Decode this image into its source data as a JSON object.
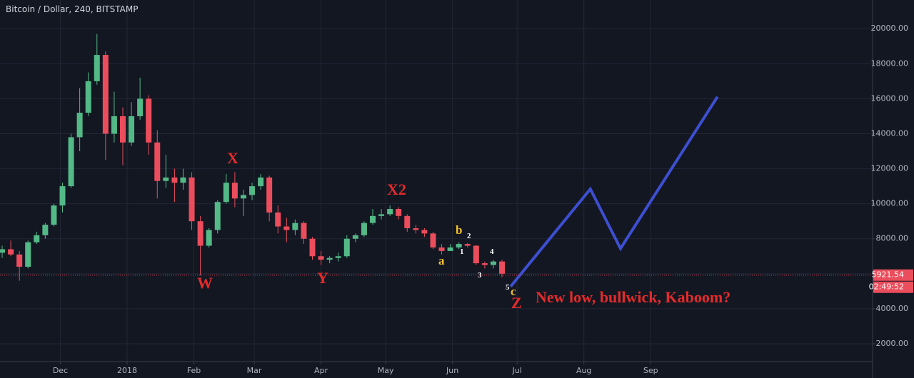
{
  "chart_data": {
    "type": "candlestick",
    "title": "Bitcoin / Dollar, 240, BITSTAMP",
    "up_color": "#53b987",
    "down_color": "#eb4d5c",
    "grid": true,
    "xlim": [
      "2017-11-03",
      "2018-12-13"
    ],
    "xticks": [
      {
        "value": "2017-12-01",
        "label": "Dec"
      },
      {
        "value": "2018-01-01",
        "label": "2018"
      },
      {
        "value": "2018-02-01",
        "label": "Feb"
      },
      {
        "value": "2018-03-01",
        "label": "Mar"
      },
      {
        "value": "2018-04-01",
        "label": "Apr"
      },
      {
        "value": "2018-05-01",
        "label": "May"
      },
      {
        "value": "2018-06-01",
        "label": "Jun"
      },
      {
        "value": "2018-07-01",
        "label": "Jul"
      },
      {
        "value": "2018-08-01",
        "label": "Aug"
      },
      {
        "value": "2018-09-01",
        "label": "Sep"
      }
    ],
    "ylim": [
      980,
      21640
    ],
    "yticks": [
      {
        "value": 2000,
        "label": "2000.00"
      },
      {
        "value": 4000,
        "label": "4000.00"
      },
      {
        "value": 6000,
        "label": "6000.00"
      },
      {
        "value": 8000,
        "label": "8000.00"
      },
      {
        "value": 10000,
        "label": "10000.00"
      },
      {
        "value": 12000,
        "label": "12000.00"
      },
      {
        "value": 14000,
        "label": "14000.00"
      },
      {
        "value": 16000,
        "label": "16000.00"
      },
      {
        "value": 18000,
        "label": "18000.00"
      },
      {
        "value": 20000,
        "label": "20000.00"
      }
    ],
    "x": [
      "2017-11-04",
      "2017-11-08",
      "2017-11-12",
      "2017-11-16",
      "2017-11-20",
      "2017-11-24",
      "2017-11-28",
      "2017-12-02",
      "2017-12-06",
      "2017-12-10",
      "2017-12-14",
      "2017-12-18",
      "2017-12-22",
      "2017-12-26",
      "2017-12-30",
      "2018-01-03",
      "2018-01-07",
      "2018-01-11",
      "2018-01-15",
      "2018-01-19",
      "2018-01-23",
      "2018-01-27",
      "2018-01-31",
      "2018-02-04",
      "2018-02-08",
      "2018-02-12",
      "2018-02-16",
      "2018-02-20",
      "2018-02-24",
      "2018-02-28",
      "2018-03-04",
      "2018-03-08",
      "2018-03-12",
      "2018-03-16",
      "2018-03-20",
      "2018-03-24",
      "2018-03-28",
      "2018-04-01",
      "2018-04-05",
      "2018-04-09",
      "2018-04-13",
      "2018-04-17",
      "2018-04-21",
      "2018-04-25",
      "2018-04-29",
      "2018-05-03",
      "2018-05-07",
      "2018-05-11",
      "2018-05-15",
      "2018-05-19",
      "2018-05-23",
      "2018-05-27",
      "2018-05-31",
      "2018-06-04",
      "2018-06-08",
      "2018-06-12",
      "2018-06-16",
      "2018-06-20",
      "2018-06-24"
    ],
    "open": [
      7200,
      7400,
      7100,
      6400,
      7800,
      8200,
      8800,
      9900,
      11000,
      13800,
      15200,
      17000,
      18500,
      14000,
      15000,
      13500,
      15000,
      16000,
      13500,
      11300,
      11500,
      11200,
      11500,
      9000,
      7600,
      8500,
      10100,
      11200,
      10300,
      10500,
      11000,
      11500,
      9500,
      8700,
      8500,
      8900,
      8000,
      7000,
      6800,
      6900,
      7000,
      8000,
      8200,
      8900,
      9300,
      9400,
      9700,
      9300,
      8600,
      8500,
      8300,
      7500,
      7300,
      7500,
      7700,
      7600,
      6600,
      6500,
      6700
    ],
    "high": [
      7600,
      7900,
      7300,
      7900,
      8400,
      8900,
      10000,
      11200,
      14000,
      16600,
      17500,
      19700,
      18700,
      16400,
      15500,
      15800,
      17200,
      16200,
      14200,
      12800,
      12000,
      12000,
      11800,
      9300,
      8600,
      10200,
      11700,
      11800,
      10800,
      11200,
      11700,
      11600,
      9900,
      9200,
      9100,
      9000,
      8100,
      7300,
      7000,
      7200,
      8200,
      8300,
      9000,
      9700,
      9700,
      9900,
      9800,
      9400,
      8800,
      8600,
      8400,
      7700,
      7700,
      7800,
      7750,
      7650,
      6700,
      6800,
      6800
    ],
    "low": [
      6900,
      7000,
      5600,
      6300,
      7700,
      8000,
      8700,
      9500,
      10900,
      13000,
      15000,
      16800,
      12500,
      13500,
      12200,
      13300,
      14800,
      12800,
      10300,
      10900,
      10100,
      10800,
      8500,
      5900,
      7500,
      8300,
      10000,
      9800,
      9300,
      10200,
      10800,
      9000,
      8300,
      7800,
      8200,
      7700,
      6800,
      6500,
      6600,
      6700,
      6900,
      7800,
      8100,
      8800,
      9100,
      9300,
      9100,
      8400,
      8300,
      8100,
      7400,
      7100,
      7300,
      7400,
      7500,
      6500,
      6300,
      6300,
      5800
    ],
    "close": [
      7400,
      7100,
      6400,
      7800,
      8200,
      8800,
      9900,
      11000,
      13800,
      15200,
      17000,
      18500,
      14000,
      15000,
      13500,
      15000,
      16000,
      13500,
      11300,
      11500,
      11200,
      11500,
      9000,
      7600,
      8500,
      10100,
      11200,
      10300,
      10500,
      11000,
      11500,
      9500,
      8700,
      8500,
      8900,
      8000,
      7000,
      6800,
      6900,
      7000,
      8000,
      8200,
      8900,
      9300,
      9400,
      9700,
      9300,
      8600,
      8500,
      8300,
      7500,
      7300,
      7500,
      7700,
      7600,
      6600,
      6500,
      6700,
      6000
    ],
    "last_price": 5921.54,
    "last_price_color": "#eb4d5c",
    "countdown": "02:49:52",
    "forecast": {
      "color": "#3d4fd1",
      "x": [
        "2018-06-28",
        "2018-08-04",
        "2018-08-18",
        "2018-10-02"
      ],
      "values": [
        5270,
        10840,
        7440,
        16110
      ]
    },
    "annotations": [
      "W",
      "X",
      "Y",
      "X2",
      "Z",
      "a",
      "b",
      "c",
      "1",
      "2",
      "3",
      "4",
      "5",
      "New low, bullwick, Kaboom?"
    ]
  }
}
